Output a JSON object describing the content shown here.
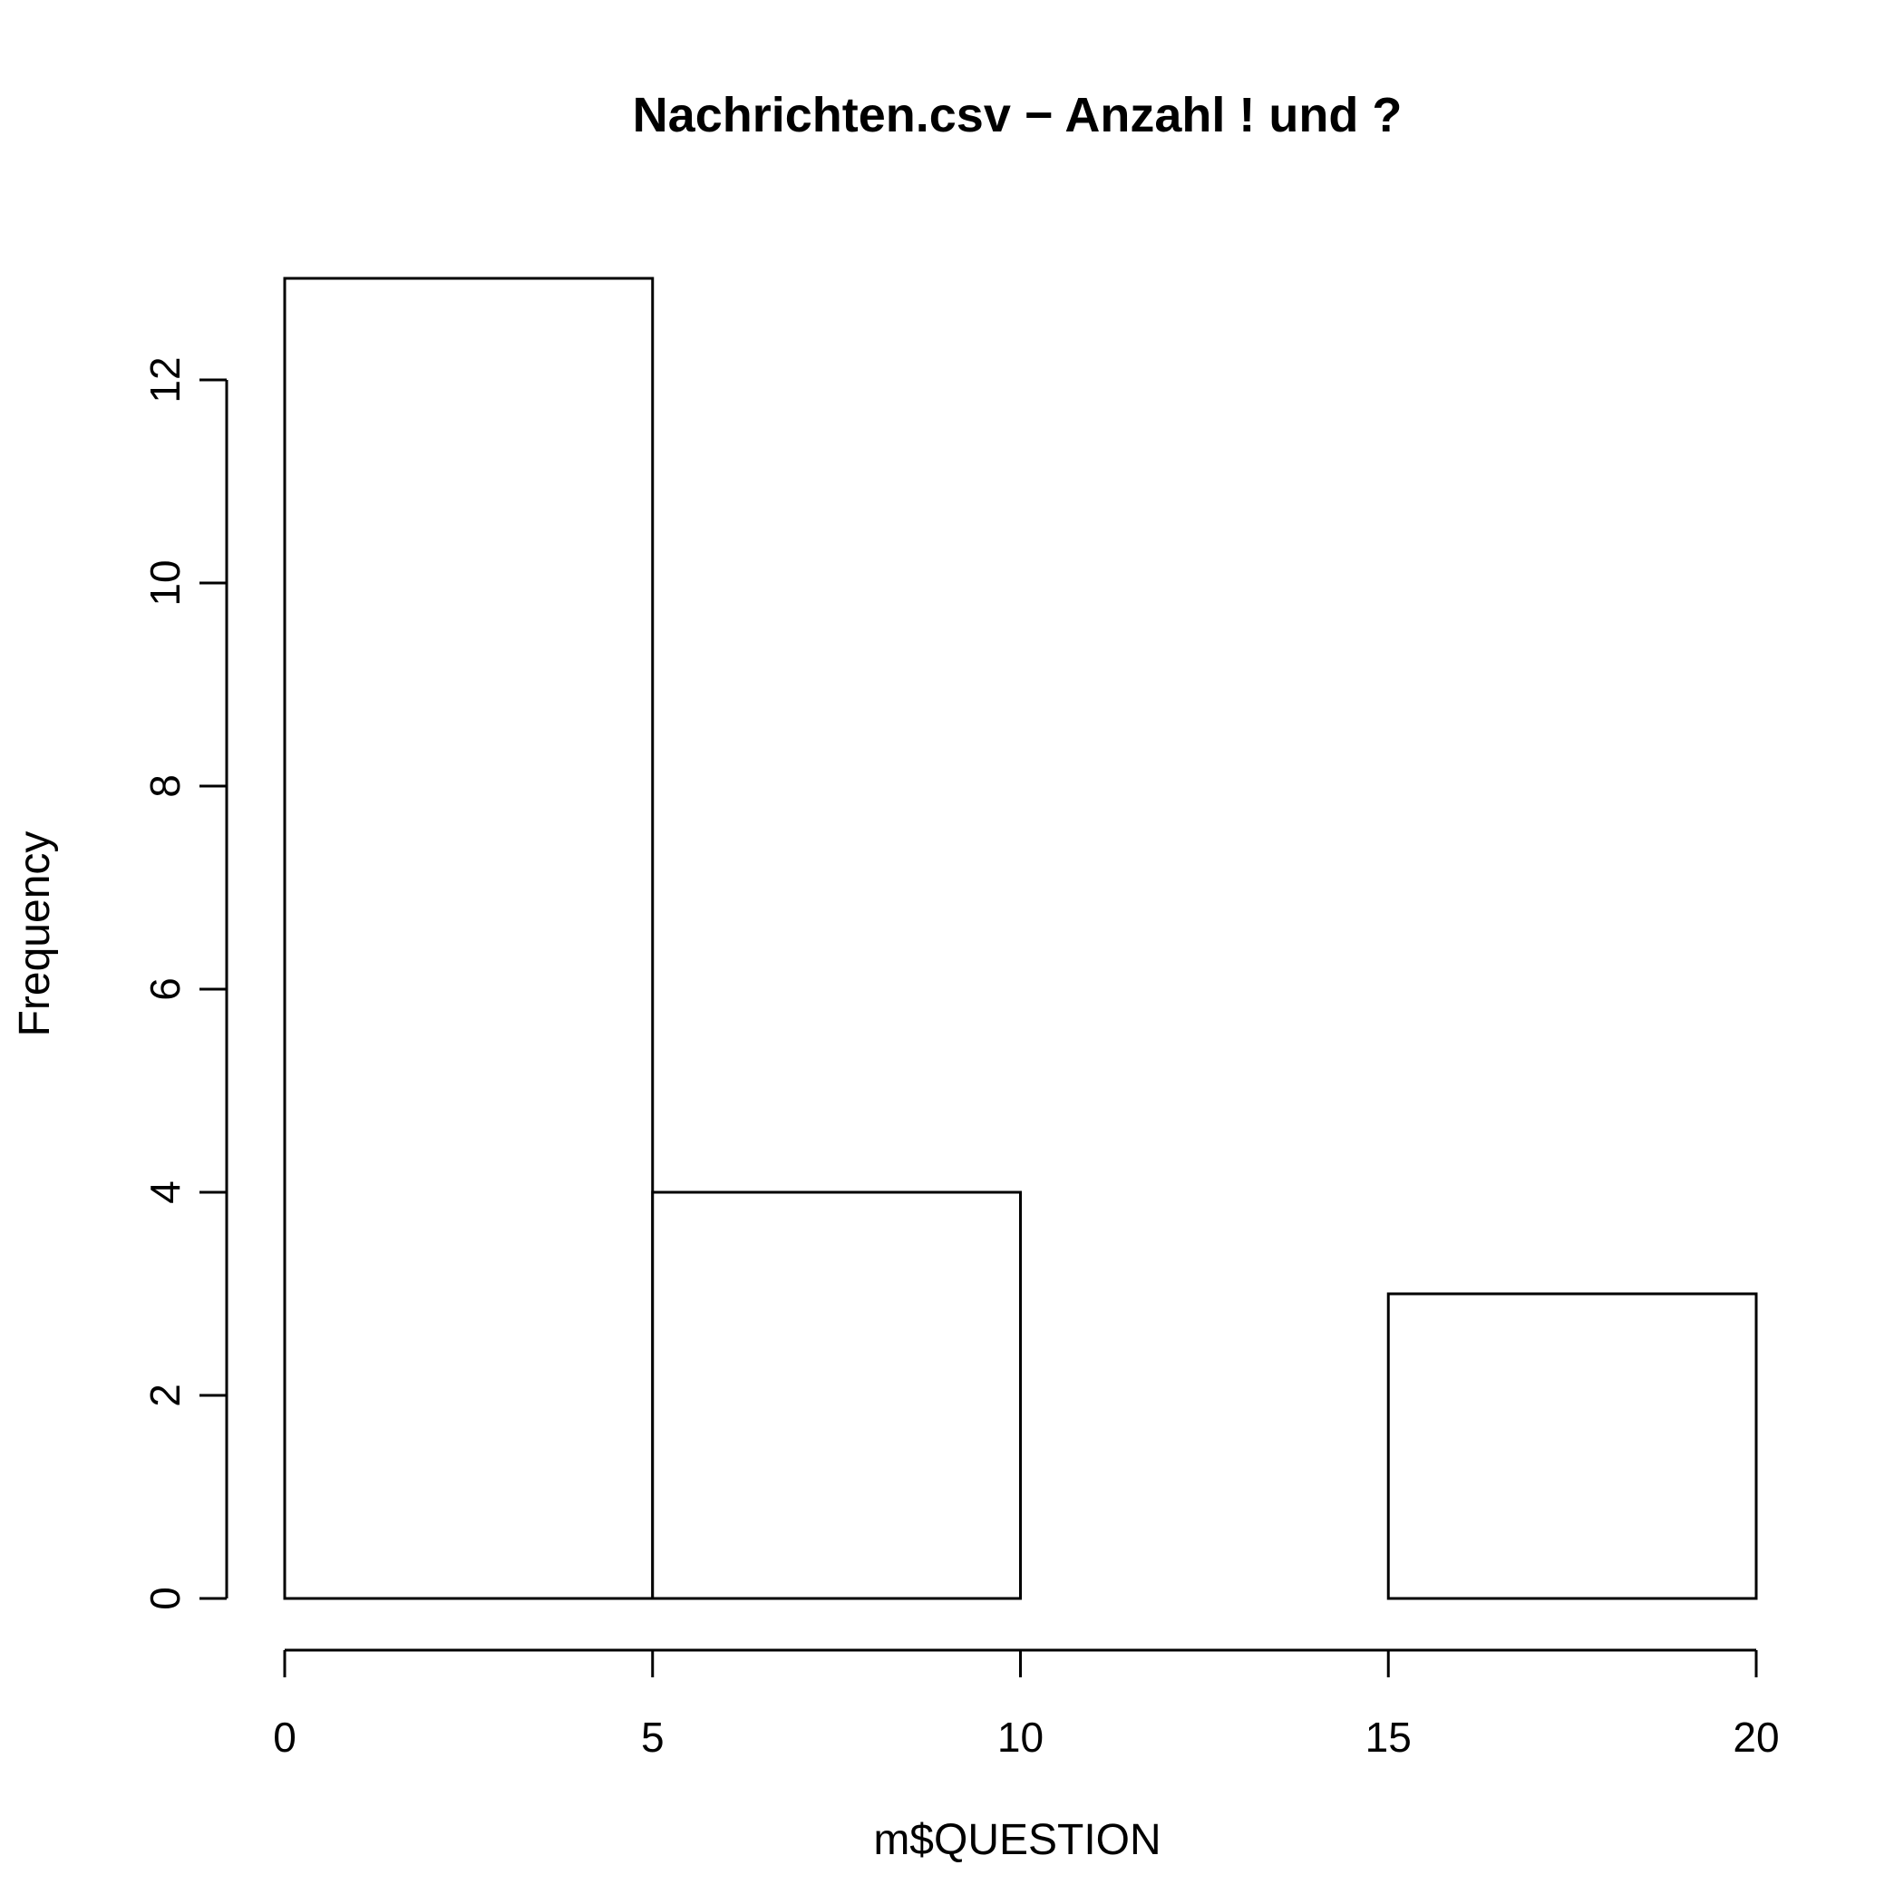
{
  "chart_data": {
    "type": "bar",
    "subtype": "histogram",
    "title": "Nachrichten.csv − Anzahl ! und ?",
    "xlabel": "m$QUESTION",
    "ylabel": "Frequency",
    "bins": [
      {
        "x0": 0,
        "x1": 5,
        "count": 13
      },
      {
        "x0": 5,
        "x1": 10,
        "count": 4
      },
      {
        "x0": 10,
        "x1": 15,
        "count": 0
      },
      {
        "x0": 15,
        "x1": 20,
        "count": 3
      }
    ],
    "xlim": [
      0,
      20
    ],
    "ylim": [
      0,
      13
    ],
    "x_ticks": [
      "0",
      "5",
      "10",
      "15",
      "20"
    ],
    "y_ticks": [
      "0",
      "2",
      "4",
      "6",
      "8",
      "10",
      "12"
    ],
    "bar_fill": "#ffffff",
    "stroke_color": "#000000",
    "grid": false,
    "legend": "none"
  }
}
